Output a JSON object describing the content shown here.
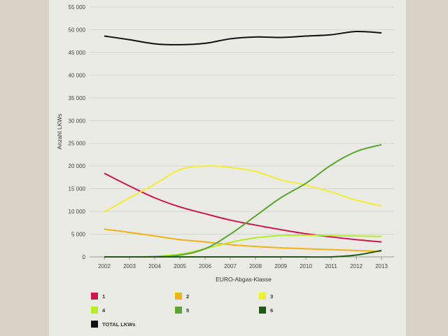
{
  "chart_data": {
    "type": "line",
    "xlabel": "EURO-Abgas-Klasse",
    "ylabel": "Anzahl LKWs",
    "ylim": [
      0,
      55000
    ],
    "yticks": [
      0,
      5000,
      10000,
      15000,
      20000,
      25000,
      30000,
      35000,
      40000,
      45000,
      50000,
      55000
    ],
    "ytick_labels": [
      "0",
      "5 000",
      "10 000",
      "15 000",
      "20 000",
      "25 000",
      "30 000",
      "35 000",
      "40 000",
      "45 000",
      "50 000",
      "55 000"
    ],
    "categories": [
      "2002",
      "2003",
      "2004",
      "2005",
      "2006",
      "2007",
      "2008",
      "2009",
      "2010",
      "2011",
      "2012",
      "2013"
    ],
    "grid": true,
    "legend_position": "bottom",
    "series": [
      {
        "name": "1",
        "color": "#cc1650",
        "values": [
          18400,
          15600,
          13000,
          11000,
          9500,
          8100,
          7000,
          6000,
          5100,
          4400,
          3800,
          3300
        ]
      },
      {
        "name": "2",
        "color": "#f5b116",
        "values": [
          6100,
          5400,
          4600,
          3800,
          3300,
          2700,
          2300,
          2000,
          1800,
          1600,
          1400,
          1200
        ]
      },
      {
        "name": "3",
        "color": "#f2ec3a",
        "values": [
          9900,
          13000,
          16000,
          19200,
          20000,
          19700,
          18800,
          17000,
          15800,
          14300,
          12500,
          11200
        ]
      },
      {
        "name": "4",
        "color": "#b4ec2a",
        "values": [
          0,
          0,
          100,
          600,
          1800,
          3200,
          4200,
          4700,
          4800,
          4700,
          4600,
          4500
        ]
      },
      {
        "name": "5",
        "color": "#5aa632",
        "values": [
          0,
          0,
          50,
          400,
          1800,
          5000,
          9000,
          13000,
          16200,
          20200,
          23200,
          24700
        ]
      },
      {
        "name": "6",
        "color": "#1e5a14",
        "values": [
          0,
          0,
          0,
          0,
          0,
          0,
          0,
          0,
          0,
          0,
          400,
          1400
        ]
      },
      {
        "name": "TOTAL LKWs",
        "color": "#111111",
        "values": [
          48600,
          47800,
          46900,
          46700,
          47000,
          48000,
          48400,
          48300,
          48600,
          48900,
          49600,
          49300
        ]
      }
    ]
  }
}
